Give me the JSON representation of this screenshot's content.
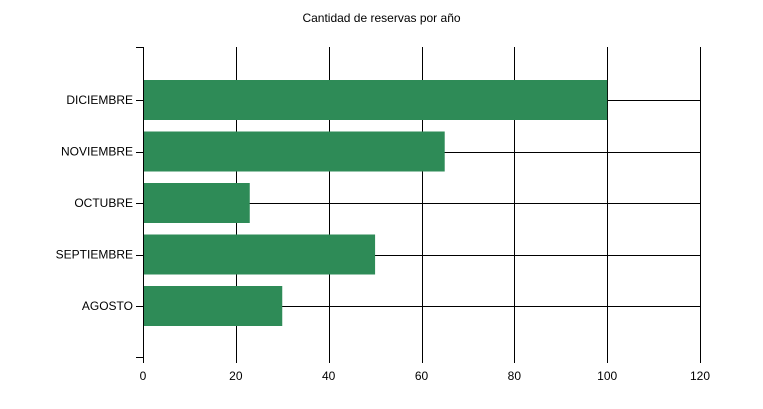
{
  "chart_data": {
    "type": "bar",
    "orientation": "horizontal",
    "title": "Cantidad de reservas por año",
    "categories": [
      "DICIEMBRE",
      "NOVIEMBRE",
      "OCTUBRE",
      "SEPTIEMBRE",
      "AGOSTO"
    ],
    "values": [
      100,
      65,
      23,
      50,
      30
    ],
    "xlim": [
      0,
      120
    ],
    "x_ticks": [
      "0",
      "20",
      "40",
      "60",
      "80",
      "100",
      "120"
    ],
    "grid": true,
    "legend": "none",
    "colors": {
      "bar": "#2e8b57",
      "grid": "#000000",
      "axis": "#000000"
    }
  }
}
